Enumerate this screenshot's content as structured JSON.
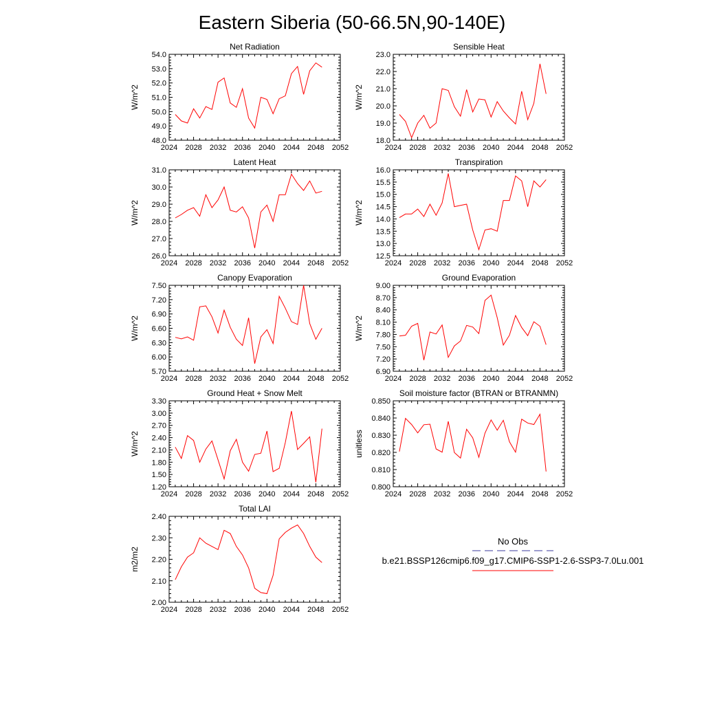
{
  "page": {
    "title": "Eastern Siberia (50-66.5N,90-140E)"
  },
  "colors": {
    "model": "#ff0000",
    "obs": "#3b3b9e",
    "axis": "#000000"
  },
  "legend": {
    "obs_label": "No Obs",
    "model_label": "b.e21.BSSP126cmip6.f09_g17.CMIP6-SSP1-2.6-SSP3-7.0Lu.001"
  },
  "chart_data": [
    {
      "type": "line",
      "title": "Net Radiation",
      "ylabel": "W/m^2",
      "xlim": [
        2024,
        2052
      ],
      "xticks": [
        2024,
        2028,
        2032,
        2036,
        2040,
        2044,
        2048,
        2052
      ],
      "xtick_labels": [
        "2024",
        "2028",
        "2032",
        "2036",
        "2040",
        "2044",
        "2048",
        "2052"
      ],
      "ylim": [
        48.0,
        54.0
      ],
      "yticks": [
        48.0,
        49.0,
        50.0,
        51.0,
        52.0,
        53.0,
        54.0
      ],
      "ytick_labels": [
        "48.0",
        "49.0",
        "50.0",
        "51.0",
        "52.0",
        "53.0",
        "54.0"
      ],
      "x": [
        2025,
        2026,
        2027,
        2028,
        2029,
        2030,
        2031,
        2032,
        2033,
        2034,
        2035,
        2036,
        2037,
        2038,
        2039,
        2040,
        2041,
        2042,
        2043,
        2044,
        2045,
        2046,
        2047,
        2048,
        2049
      ],
      "series": [
        {
          "values": [
            49.8,
            49.35,
            49.2,
            50.2,
            49.55,
            50.35,
            50.15,
            52.05,
            52.35,
            50.6,
            50.3,
            51.6,
            49.55,
            48.85,
            51.0,
            50.85,
            49.85,
            50.9,
            51.1,
            52.65,
            53.15,
            51.2,
            52.85,
            53.4,
            53.1
          ]
        }
      ]
    },
    {
      "type": "line",
      "title": "Sensible Heat",
      "ylabel": "W/m^2",
      "xlim": [
        2024,
        2052
      ],
      "xticks": [
        2024,
        2028,
        2032,
        2036,
        2040,
        2044,
        2048,
        2052
      ],
      "xtick_labels": [
        "2024",
        "2028",
        "2032",
        "2036",
        "2040",
        "2044",
        "2048",
        "2052"
      ],
      "ylim": [
        18.0,
        23.0
      ],
      "yticks": [
        18.0,
        19.0,
        20.0,
        21.0,
        22.0,
        23.0
      ],
      "ytick_labels": [
        "18.0",
        "19.0",
        "20.0",
        "21.0",
        "22.0",
        "23.0"
      ],
      "x": [
        2025,
        2026,
        2027,
        2028,
        2029,
        2030,
        2031,
        2032,
        2033,
        2034,
        2035,
        2036,
        2037,
        2038,
        2039,
        2040,
        2041,
        2042,
        2043,
        2044,
        2045,
        2046,
        2047,
        2048,
        2049
      ],
      "series": [
        {
          "values": [
            19.5,
            19.1,
            18.15,
            19.0,
            19.45,
            18.7,
            19.0,
            21.0,
            20.9,
            19.95,
            19.4,
            20.95,
            19.65,
            20.4,
            20.35,
            19.35,
            20.25,
            19.7,
            19.3,
            18.95,
            20.85,
            19.2,
            20.15,
            22.45,
            20.7
          ]
        }
      ]
    },
    {
      "type": "line",
      "title": "Latent Heat",
      "ylabel": "W/m^2",
      "xlim": [
        2024,
        2052
      ],
      "xticks": [
        2024,
        2028,
        2032,
        2036,
        2040,
        2044,
        2048,
        2052
      ],
      "xtick_labels": [
        "2024",
        "2028",
        "2032",
        "2036",
        "2040",
        "2044",
        "2048",
        "2052"
      ],
      "ylim": [
        26.0,
        31.0
      ],
      "yticks": [
        26.0,
        27.0,
        28.0,
        29.0,
        30.0,
        31.0
      ],
      "ytick_labels": [
        "26.0",
        "27.0",
        "28.0",
        "29.0",
        "30.0",
        "31.0"
      ],
      "x": [
        2025,
        2026,
        2027,
        2028,
        2029,
        2030,
        2031,
        2032,
        2033,
        2034,
        2035,
        2036,
        2037,
        2038,
        2039,
        2040,
        2041,
        2042,
        2043,
        2044,
        2045,
        2046,
        2047,
        2048,
        2049
      ],
      "series": [
        {
          "values": [
            28.2,
            28.4,
            28.65,
            28.8,
            28.3,
            29.55,
            28.8,
            29.25,
            30.0,
            28.65,
            28.55,
            28.85,
            28.2,
            26.45,
            28.55,
            28.95,
            28.0,
            29.55,
            29.55,
            30.75,
            30.2,
            29.8,
            30.35,
            29.65,
            29.75
          ]
        }
      ]
    },
    {
      "type": "line",
      "title": "Transpiration",
      "ylabel": "W/m^2",
      "xlim": [
        2024,
        2052
      ],
      "xticks": [
        2024,
        2028,
        2032,
        2036,
        2040,
        2044,
        2048,
        2052
      ],
      "xtick_labels": [
        "2024",
        "2028",
        "2032",
        "2036",
        "2040",
        "2044",
        "2048",
        "2052"
      ],
      "ylim": [
        12.5,
        16.0
      ],
      "yticks": [
        12.5,
        13.0,
        13.5,
        14.0,
        14.5,
        15.0,
        15.5,
        16.0
      ],
      "ytick_labels": [
        "12.5",
        "13.0",
        "13.5",
        "14.0",
        "14.5",
        "15.0",
        "15.5",
        "16.0"
      ],
      "x": [
        2025,
        2026,
        2027,
        2028,
        2029,
        2030,
        2031,
        2032,
        2033,
        2034,
        2035,
        2036,
        2037,
        2038,
        2039,
        2040,
        2041,
        2042,
        2043,
        2044,
        2045,
        2046,
        2047,
        2048,
        2049
      ],
      "series": [
        {
          "values": [
            14.05,
            14.2,
            14.2,
            14.4,
            14.1,
            14.6,
            14.15,
            14.65,
            15.85,
            14.5,
            14.55,
            14.6,
            13.55,
            12.75,
            13.55,
            13.6,
            13.5,
            14.75,
            14.75,
            15.75,
            15.55,
            14.5,
            15.55,
            15.3,
            15.6
          ]
        }
      ]
    },
    {
      "type": "line",
      "title": "Canopy Evaporation",
      "ylabel": "W/m^2",
      "xlim": [
        2024,
        2052
      ],
      "xticks": [
        2024,
        2028,
        2032,
        2036,
        2040,
        2044,
        2048,
        2052
      ],
      "xtick_labels": [
        "2024",
        "2028",
        "2032",
        "2036",
        "2040",
        "2044",
        "2048",
        "2052"
      ],
      "ylim": [
        5.7,
        7.5
      ],
      "yticks": [
        5.7,
        6.0,
        6.3,
        6.6,
        6.9,
        7.2,
        7.5
      ],
      "ytick_labels": [
        "5.70",
        "6.00",
        "6.30",
        "6.60",
        "6.90",
        "7.20",
        "7.50"
      ],
      "x": [
        2025,
        2026,
        2027,
        2028,
        2029,
        2030,
        2031,
        2032,
        2033,
        2034,
        2035,
        2036,
        2037,
        2038,
        2039,
        2040,
        2041,
        2042,
        2043,
        2044,
        2045,
        2046,
        2047,
        2048,
        2049
      ],
      "series": [
        {
          "values": [
            6.41,
            6.38,
            6.42,
            6.35,
            7.05,
            7.07,
            6.84,
            6.5,
            6.98,
            6.62,
            6.37,
            6.24,
            6.82,
            5.86,
            6.42,
            6.57,
            6.28,
            7.27,
            7.02,
            6.74,
            6.68,
            7.5,
            6.7,
            6.37,
            6.6
          ]
        }
      ]
    },
    {
      "type": "line",
      "title": "Ground Evaporation",
      "ylabel": "W/m^2",
      "xlim": [
        2024,
        2052
      ],
      "xticks": [
        2024,
        2028,
        2032,
        2036,
        2040,
        2044,
        2048,
        2052
      ],
      "xtick_labels": [
        "2024",
        "2028",
        "2032",
        "2036",
        "2040",
        "2044",
        "2048",
        "2052"
      ],
      "ylim": [
        6.9,
        9.0
      ],
      "yticks": [
        6.9,
        7.2,
        7.5,
        7.8,
        8.1,
        8.4,
        8.7,
        9.0
      ],
      "ytick_labels": [
        "6.90",
        "7.20",
        "7.50",
        "7.80",
        "8.10",
        "8.40",
        "8.70",
        "9.00"
      ],
      "x": [
        2025,
        2026,
        2027,
        2028,
        2029,
        2030,
        2031,
        2032,
        2033,
        2034,
        2035,
        2036,
        2037,
        2038,
        2039,
        2040,
        2041,
        2042,
        2043,
        2044,
        2045,
        2046,
        2047,
        2048,
        2049
      ],
      "series": [
        {
          "values": [
            7.76,
            7.78,
            8.0,
            8.07,
            7.17,
            7.86,
            7.81,
            8.03,
            7.24,
            7.52,
            7.64,
            8.02,
            7.98,
            7.82,
            8.63,
            8.76,
            8.21,
            7.54,
            7.78,
            8.26,
            7.97,
            7.77,
            8.11,
            8.0,
            7.55
          ]
        }
      ]
    },
    {
      "type": "line",
      "title": "Ground Heat + Snow Melt",
      "ylabel": "W/m^2",
      "xlim": [
        2024,
        2052
      ],
      "xticks": [
        2024,
        2028,
        2032,
        2036,
        2040,
        2044,
        2048,
        2052
      ],
      "xtick_labels": [
        "2024",
        "2028",
        "2032",
        "2036",
        "2040",
        "2044",
        "2048",
        "2052"
      ],
      "ylim": [
        1.2,
        3.3
      ],
      "yticks": [
        1.2,
        1.5,
        1.8,
        2.1,
        2.4,
        2.7,
        3.0,
        3.3
      ],
      "ytick_labels": [
        "1.20",
        "1.50",
        "1.80",
        "2.10",
        "2.40",
        "2.70",
        "3.00",
        "3.30"
      ],
      "x": [
        2025,
        2026,
        2027,
        2028,
        2029,
        2030,
        2031,
        2032,
        2033,
        2034,
        2035,
        2036,
        2037,
        2038,
        2039,
        2040,
        2041,
        2042,
        2043,
        2044,
        2045,
        2046,
        2047,
        2048,
        2049
      ],
      "series": [
        {
          "values": [
            2.17,
            1.89,
            2.45,
            2.33,
            1.8,
            2.12,
            2.32,
            1.86,
            1.39,
            2.08,
            2.36,
            1.8,
            1.58,
            1.99,
            2.02,
            2.56,
            1.57,
            1.65,
            2.28,
            3.05,
            2.11,
            2.26,
            2.42,
            1.31,
            2.62
          ]
        }
      ]
    },
    {
      "type": "line",
      "title": "Soil moisture factor (BTRAN or BTRANMN)",
      "ylabel": "unitless",
      "xlim": [
        2024,
        2052
      ],
      "xticks": [
        2024,
        2028,
        2032,
        2036,
        2040,
        2044,
        2048,
        2052
      ],
      "xtick_labels": [
        "2024",
        "2028",
        "2032",
        "2036",
        "2040",
        "2044",
        "2048",
        "2052"
      ],
      "ylim": [
        0.8,
        0.85
      ],
      "yticks": [
        0.8,
        0.81,
        0.82,
        0.83,
        0.84,
        0.85
      ],
      "ytick_labels": [
        "0.800",
        "0.810",
        "0.820",
        "0.830",
        "0.840",
        "0.850"
      ],
      "x": [
        2025,
        2026,
        2027,
        2028,
        2029,
        2030,
        2031,
        2032,
        2033,
        2034,
        2035,
        2036,
        2037,
        2038,
        2039,
        2040,
        2041,
        2042,
        2043,
        2044,
        2045,
        2046,
        2047,
        2048,
        2049
      ],
      "series": [
        {
          "values": [
            0.8205,
            0.8398,
            0.8362,
            0.8313,
            0.8361,
            0.8364,
            0.822,
            0.8201,
            0.8381,
            0.8199,
            0.8167,
            0.8335,
            0.8285,
            0.8171,
            0.8312,
            0.8389,
            0.8329,
            0.8387,
            0.8262,
            0.8201,
            0.8393,
            0.8371,
            0.8362,
            0.8422,
            0.8089
          ]
        }
      ]
    },
    {
      "type": "line",
      "title": "Total LAI",
      "ylabel": "m2/m2",
      "xlim": [
        2024,
        2052
      ],
      "xticks": [
        2024,
        2028,
        2032,
        2036,
        2040,
        2044,
        2048,
        2052
      ],
      "xtick_labels": [
        "2024",
        "2028",
        "2032",
        "2036",
        "2040",
        "2044",
        "2048",
        "2052"
      ],
      "ylim": [
        2.0,
        2.4
      ],
      "yticks": [
        2.0,
        2.1,
        2.2,
        2.3,
        2.4
      ],
      "ytick_labels": [
        "2.00",
        "2.10",
        "2.20",
        "2.30",
        "2.40"
      ],
      "x": [
        2025,
        2026,
        2027,
        2028,
        2029,
        2030,
        2031,
        2032,
        2033,
        2034,
        2035,
        2036,
        2037,
        2038,
        2039,
        2040,
        2041,
        2042,
        2043,
        2044,
        2045,
        2046,
        2047,
        2048,
        2049
      ],
      "series": [
        {
          "values": [
            2.105,
            2.165,
            2.21,
            2.23,
            2.3,
            2.275,
            2.26,
            2.245,
            2.335,
            2.32,
            2.26,
            2.22,
            2.16,
            2.065,
            2.045,
            2.04,
            2.125,
            2.295,
            2.325,
            2.345,
            2.36,
            2.32,
            2.26,
            2.21,
            2.185
          ]
        }
      ]
    }
  ]
}
